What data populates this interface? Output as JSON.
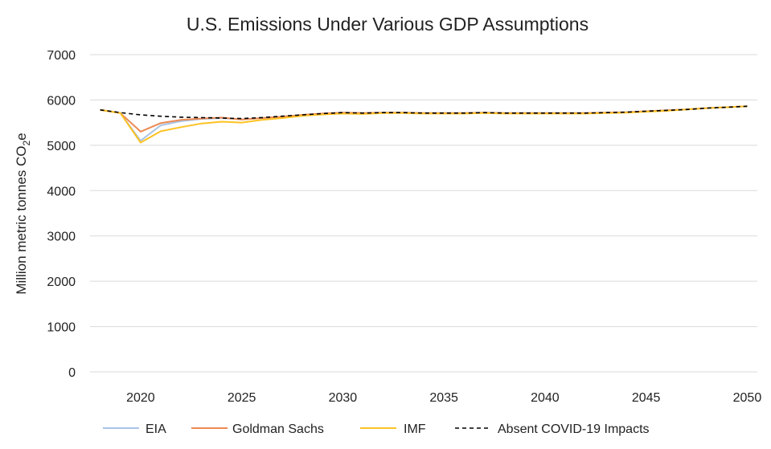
{
  "chart_data": {
    "type": "line",
    "title": "U.S. Emissions Under Various GDP Assumptions",
    "xlabel": "",
    "ylabel": "Million metric tonnes CO",
    "ylabel_subscript": "2",
    "ylabel_suffix": "e",
    "xlim": [
      2017.5,
      2050.5
    ],
    "ylim": [
      0,
      7000
    ],
    "grid": true,
    "legend_position": "bottom",
    "y_ticks": [
      0,
      1000,
      2000,
      3000,
      4000,
      5000,
      6000,
      7000
    ],
    "y_tick_labels": [
      "0",
      "1000",
      "2000",
      "3000",
      "4000",
      "5000",
      "6000",
      "7000"
    ],
    "x_ticks": [
      2020,
      2025,
      2030,
      2035,
      2040,
      2045,
      2050
    ],
    "x_tick_labels": [
      "2020",
      "2025",
      "2030",
      "2035",
      "2040",
      "2045",
      "2050"
    ],
    "series": [
      {
        "name": "EIA",
        "color": "#a9c4e4",
        "dash": "solid",
        "x": [
          2018,
          2019,
          2020,
          2021,
          2022,
          2023,
          2024,
          2025,
          2026,
          2027,
          2028,
          2029,
          2030,
          2031,
          2032,
          2033,
          2034,
          2035,
          2036,
          2037,
          2038,
          2039,
          2040,
          2041,
          2042,
          2043,
          2044,
          2045,
          2046,
          2047,
          2048,
          2049,
          2050
        ],
        "values": [
          5780,
          5710,
          5100,
          5440,
          5530,
          5580,
          5600,
          5570,
          5600,
          5630,
          5670,
          5700,
          5720,
          5710,
          5720,
          5720,
          5710,
          5710,
          5710,
          5720,
          5710,
          5710,
          5710,
          5710,
          5710,
          5720,
          5730,
          5750,
          5770,
          5790,
          5820,
          5840,
          5860
        ]
      },
      {
        "name": "Goldman Sachs",
        "color": "#ed8a53",
        "dash": "solid",
        "x": [
          2018,
          2019,
          2020,
          2021,
          2022,
          2023,
          2024,
          2025,
          2026,
          2027,
          2028,
          2029,
          2030,
          2031,
          2032,
          2033,
          2034,
          2035,
          2036,
          2037,
          2038,
          2039,
          2040,
          2041,
          2042,
          2043,
          2044,
          2045,
          2046,
          2047,
          2048,
          2049,
          2050
        ],
        "values": [
          5780,
          5710,
          5300,
          5490,
          5560,
          5590,
          5610,
          5570,
          5600,
          5630,
          5670,
          5700,
          5720,
          5710,
          5720,
          5720,
          5710,
          5710,
          5710,
          5720,
          5710,
          5710,
          5710,
          5710,
          5710,
          5720,
          5730,
          5750,
          5770,
          5790,
          5820,
          5840,
          5860
        ]
      },
      {
        "name": "IMF",
        "color": "#ffc223",
        "dash": "solid",
        "x": [
          2018,
          2019,
          2020,
          2021,
          2022,
          2023,
          2024,
          2025,
          2026,
          2027,
          2028,
          2029,
          2030,
          2031,
          2032,
          2033,
          2034,
          2035,
          2036,
          2037,
          2038,
          2039,
          2040,
          2041,
          2042,
          2043,
          2044,
          2045,
          2046,
          2047,
          2048,
          2049,
          2050
        ],
        "values": [
          5780,
          5710,
          5060,
          5310,
          5400,
          5480,
          5520,
          5500,
          5560,
          5600,
          5650,
          5680,
          5700,
          5690,
          5710,
          5710,
          5700,
          5700,
          5700,
          5710,
          5700,
          5700,
          5700,
          5700,
          5700,
          5710,
          5720,
          5740,
          5760,
          5790,
          5820,
          5840,
          5860
        ]
      },
      {
        "name": "Absent COVID-19 Impacts",
        "color": "#000000",
        "dash": "dashed",
        "x": [
          2018,
          2019,
          2020,
          2021,
          2022,
          2023,
          2024,
          2025,
          2026,
          2027,
          2028,
          2029,
          2030,
          2031,
          2032,
          2033,
          2034,
          2035,
          2036,
          2037,
          2038,
          2039,
          2040,
          2041,
          2042,
          2043,
          2044,
          2045,
          2046,
          2047,
          2048,
          2049,
          2050
        ],
        "values": [
          5780,
          5720,
          5670,
          5640,
          5620,
          5610,
          5600,
          5590,
          5610,
          5640,
          5670,
          5700,
          5720,
          5710,
          5720,
          5720,
          5710,
          5710,
          5710,
          5720,
          5710,
          5710,
          5710,
          5710,
          5710,
          5720,
          5730,
          5750,
          5770,
          5790,
          5820,
          5840,
          5860
        ]
      }
    ]
  }
}
